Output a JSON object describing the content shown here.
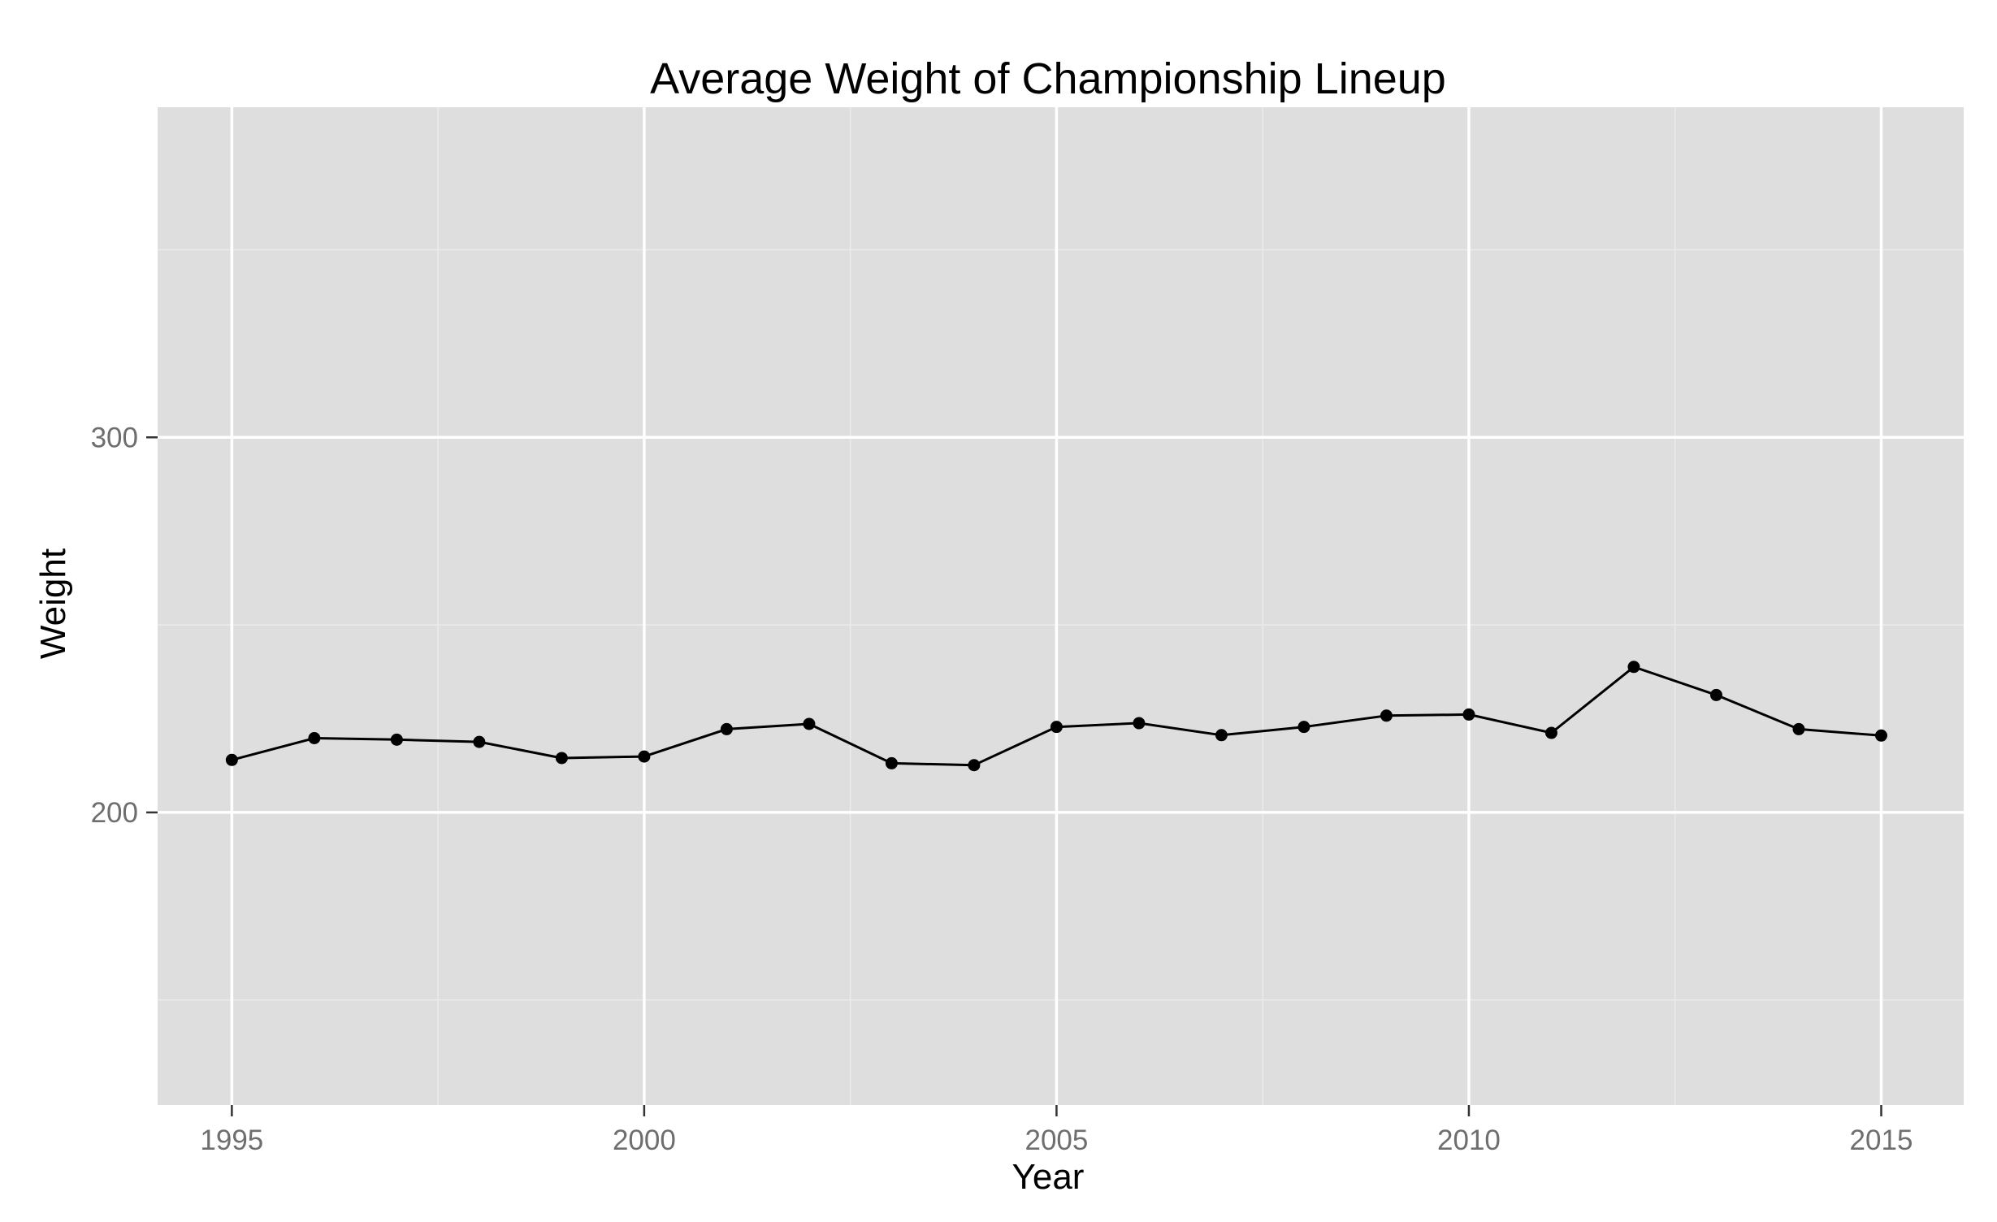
{
  "chart_data": {
    "type": "line",
    "title": "Average Weight of Championship Lineup",
    "xlabel": "Year",
    "ylabel": "Weight",
    "xlim": [
      1994.1,
      2016
    ],
    "ylim": [
      122,
      388
    ],
    "x_ticks": [
      1995,
      2000,
      2005,
      2010,
      2015
    ],
    "x_tick_labels": [
      "1995",
      "2000",
      "2005",
      "2010",
      "2015"
    ],
    "y_ticks": [
      200,
      300
    ],
    "y_tick_labels": [
      "200",
      "300"
    ],
    "x_minor_ticks": [
      1997.5,
      2002.5,
      2007.5,
      2012.5
    ],
    "y_minor_ticks": [
      150,
      250,
      350
    ],
    "grid": true,
    "legend": "none",
    "colors": {
      "panel_background": "#dedede",
      "grid_major": "#ffffff",
      "grid_minor": "#ebebeb",
      "line": "#000000",
      "point": "#000000",
      "tick_label": "#6e6e6e"
    },
    "series": [
      {
        "x": [
          1995,
          1996,
          1997,
          1998,
          1999,
          2000,
          2001,
          2002,
          2003,
          2004,
          2005,
          2006,
          2007,
          2008,
          2009,
          2010,
          2011,
          2012,
          2013,
          2014,
          2015
        ],
        "y": [
          214,
          219.8,
          219.4,
          218.8,
          214.5,
          214.9,
          222.2,
          223.6,
          213.1,
          212.6,
          222.8,
          223.8,
          220.6,
          222.8,
          225.8,
          226.1,
          221.2,
          238.8,
          231.3,
          222.2,
          220.5
        ]
      }
    ]
  }
}
